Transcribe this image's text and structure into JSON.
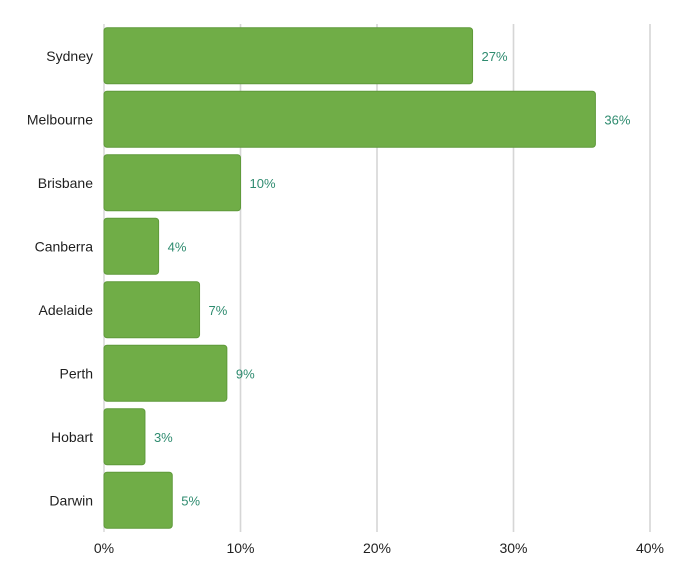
{
  "chart_data": {
    "type": "bar",
    "orientation": "horizontal",
    "categories": [
      "Sydney",
      "Melbourne",
      "Brisbane",
      "Canberra",
      "Adelaide",
      "Perth",
      "Hobart",
      "Darwin"
    ],
    "values": [
      27,
      36,
      10,
      4,
      7,
      9,
      3,
      5
    ],
    "data_labels": [
      "27%",
      "36%",
      "10%",
      "4%",
      "7%",
      "9%",
      "3%",
      "5%"
    ],
    "xlim": [
      0,
      40
    ],
    "x_ticks": [
      0,
      10,
      20,
      30,
      40
    ],
    "x_tick_labels": [
      "0%",
      "10%",
      "20%",
      "30%",
      "40%"
    ],
    "title": "",
    "xlabel": "",
    "ylabel": "",
    "grid": "vertical",
    "legend": "none",
    "colors": {
      "bar": "#70ad47",
      "bar_stroke": "#5f9a3a",
      "data_label": "#2e8b6f",
      "grid": "#d6d6d6"
    }
  }
}
